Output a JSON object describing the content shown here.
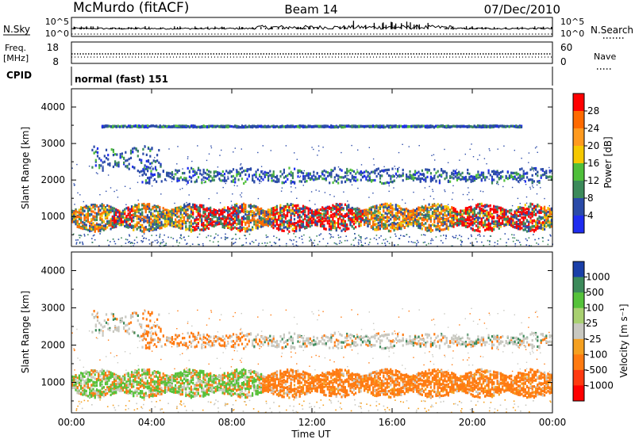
{
  "header": {
    "station": "McMurdo (fitACF)",
    "beam": "Beam 14",
    "date": "07/Dec/2010"
  },
  "strip": {
    "nsky_label": "N.Sky",
    "nsky_top": "10^5",
    "nsky_bottom": "10^0",
    "nsearch_label": "N.Search",
    "nsearch_top": "10^5",
    "nsearch_bottom": "10^0",
    "freq_label": "Freq.",
    "freq_unit": "[MHz]",
    "freq_top": "18",
    "freq_bottom": "8",
    "nave_label": "Nave",
    "nave_top": "60",
    "nave_bottom": "0",
    "cpid_label": "CPID",
    "cpid_value": "normal (fast) 151"
  },
  "chart_data": [
    {
      "type": "heatmap",
      "name": "power",
      "ylabel": "Slant Range [km]",
      "ylim": [
        180,
        4500
      ],
      "yticks": [
        1000,
        2000,
        3000,
        4000
      ],
      "xlim": [
        0,
        24
      ],
      "colorbar": {
        "label": "Power [dB]",
        "ticks": [
          "28",
          "24",
          "20",
          "16",
          "12",
          "8",
          "4"
        ],
        "colors": [
          "#ff0000",
          "#ff6a00",
          "#ff9a1e",
          "#f5c800",
          "#4fbf3a",
          "#3c8a5a",
          "#2a4aa8",
          "#1e2cf0"
        ]
      },
      "bands": [
        {
          "center": 1000,
          "width": 320,
          "start": 0.0,
          "end": 24.0,
          "level": "strong"
        },
        {
          "center": 2150,
          "width": 180,
          "start": 3.5,
          "end": 24.0,
          "level": "weak"
        },
        {
          "center": 2600,
          "width": 300,
          "start": 1.0,
          "end": 4.5,
          "level": "weak"
        },
        {
          "center": 3500,
          "width": 20,
          "start": 1.5,
          "end": 22.5,
          "level": "weak"
        }
      ]
    },
    {
      "type": "heatmap",
      "name": "velocity",
      "ylabel": "Slant Range [km]",
      "ylim": [
        180,
        4500
      ],
      "yticks": [
        1000,
        2000,
        3000,
        4000
      ],
      "xlim": [
        0,
        24
      ],
      "xticks": [
        "00:00",
        "04:00",
        "08:00",
        "12:00",
        "16:00",
        "20:00",
        "00:00"
      ],
      "xlabel": "Time UT",
      "colorbar": {
        "label": "Velocity [m s⁻¹]",
        "ticks": [
          "1000",
          "500",
          "100",
          "25",
          "-25",
          "-100",
          "-500",
          "-1000"
        ],
        "colors": [
          "#1a3fa8",
          "#3c8a5a",
          "#55c23a",
          "#a8d070",
          "#c8c8c0",
          "#f5a020",
          "#ff7a10",
          "#ff3a10",
          "#ff0000"
        ]
      }
    }
  ]
}
